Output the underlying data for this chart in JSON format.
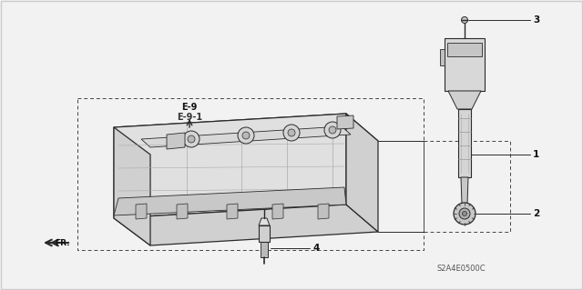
{
  "bg_fill": "#f2f2f2",
  "border_color": "#cccccc",
  "line_color": "#2a2a2a",
  "dashed_color": "#444444",
  "fill_light": "#e8e8e8",
  "fill_mid": "#d0d0d0",
  "fill_dark": "#b0b0b0",
  "text_color": "#111111",
  "diagram_code": "S2A4E0500C",
  "label_e9": "E-9",
  "label_e91": "E-9-1",
  "part1": "1",
  "part2": "2",
  "part3": "3",
  "part4": "4",
  "fr_label": "FR."
}
